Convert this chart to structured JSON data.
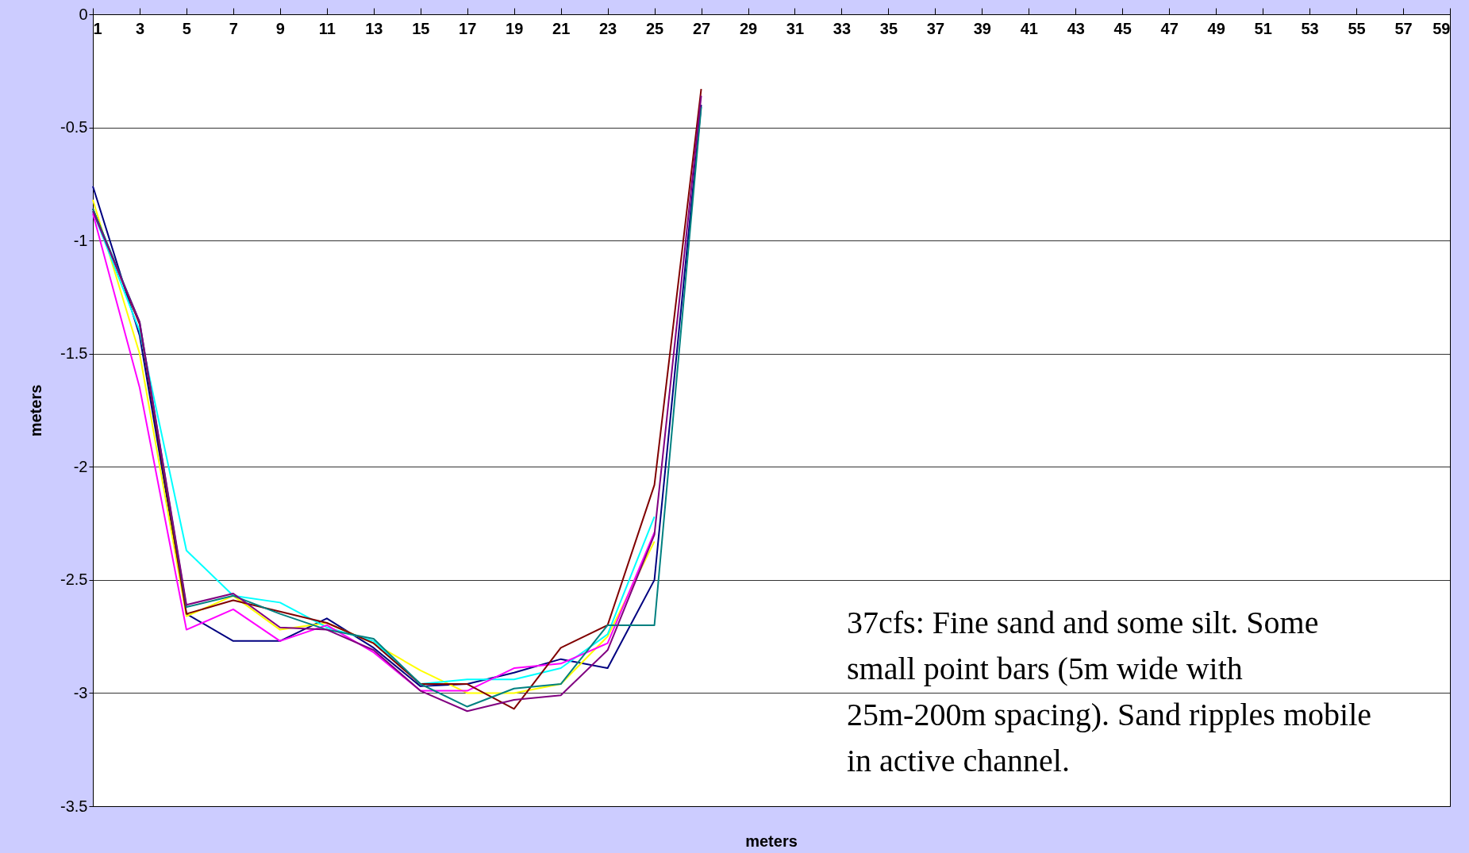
{
  "chart_data": {
    "type": "line",
    "xlabel": "meters",
    "ylabel": "meters",
    "x": [
      1,
      3,
      5,
      7,
      9,
      11,
      13,
      15,
      17,
      19,
      21,
      23,
      25,
      27
    ],
    "xlim": [
      1,
      59
    ],
    "xticks": [
      1,
      3,
      5,
      7,
      9,
      11,
      13,
      15,
      17,
      19,
      21,
      23,
      25,
      27,
      29,
      31,
      33,
      35,
      37,
      39,
      41,
      43,
      45,
      47,
      49,
      51,
      53,
      55,
      57,
      59
    ],
    "ylim": [
      -3.5,
      0
    ],
    "yticks": [
      -3.5,
      -3,
      -2.5,
      -2,
      -1.5,
      -1,
      -0.5,
      0
    ],
    "grid": "y",
    "legend": false,
    "marker": "none",
    "line_style": "solid",
    "series": [
      {
        "color": "#000080",
        "values": [
          -0.76,
          -1.42,
          -2.65,
          -2.77,
          -2.77,
          -2.67,
          -2.8,
          -2.97,
          -2.96,
          -2.91,
          -2.85,
          -2.89,
          -2.5,
          -0.4
        ]
      },
      {
        "color": "#ffff00",
        "values": [
          -0.82,
          -1.5,
          -2.66,
          -2.57,
          -2.72,
          -2.69,
          -2.78,
          -2.9,
          -3.0,
          -3.0,
          -2.96,
          -2.75,
          -2.33,
          null
        ]
      },
      {
        "color": "#00ffff",
        "values": [
          -0.87,
          -1.4,
          -2.37,
          -2.57,
          -2.6,
          -2.71,
          -2.77,
          -2.96,
          -2.94,
          -2.94,
          -2.89,
          -2.74,
          -2.22,
          null
        ]
      },
      {
        "color": "#ff00ff",
        "values": [
          -0.88,
          -1.65,
          -2.72,
          -2.63,
          -2.77,
          -2.7,
          -2.82,
          -2.99,
          -2.99,
          -2.89,
          -2.87,
          -2.78,
          -2.29,
          null
        ]
      },
      {
        "color": "#800000",
        "values": [
          -0.86,
          -1.37,
          -2.65,
          -2.59,
          -2.64,
          -2.69,
          -2.78,
          -2.96,
          -2.96,
          -3.07,
          -2.8,
          -2.7,
          -2.08,
          -0.33
        ]
      },
      {
        "color": "#008080",
        "values": [
          -0.86,
          -1.36,
          -2.62,
          -2.57,
          -2.65,
          -2.72,
          -2.76,
          -2.96,
          -3.06,
          -2.98,
          -2.96,
          -2.7,
          -2.7,
          -0.41
        ]
      },
      {
        "color": "#800080",
        "values": [
          -0.87,
          -1.36,
          -2.61,
          -2.56,
          -2.71,
          -2.72,
          -2.81,
          -2.99,
          -3.08,
          -3.03,
          -3.01,
          -2.81,
          -2.3,
          -0.36
        ]
      }
    ],
    "annotations": [
      "37cfs: Fine sand and some silt. Some small point bars (5m wide with 25m-200m spacing). Sand ripples mobile in active channel."
    ]
  }
}
